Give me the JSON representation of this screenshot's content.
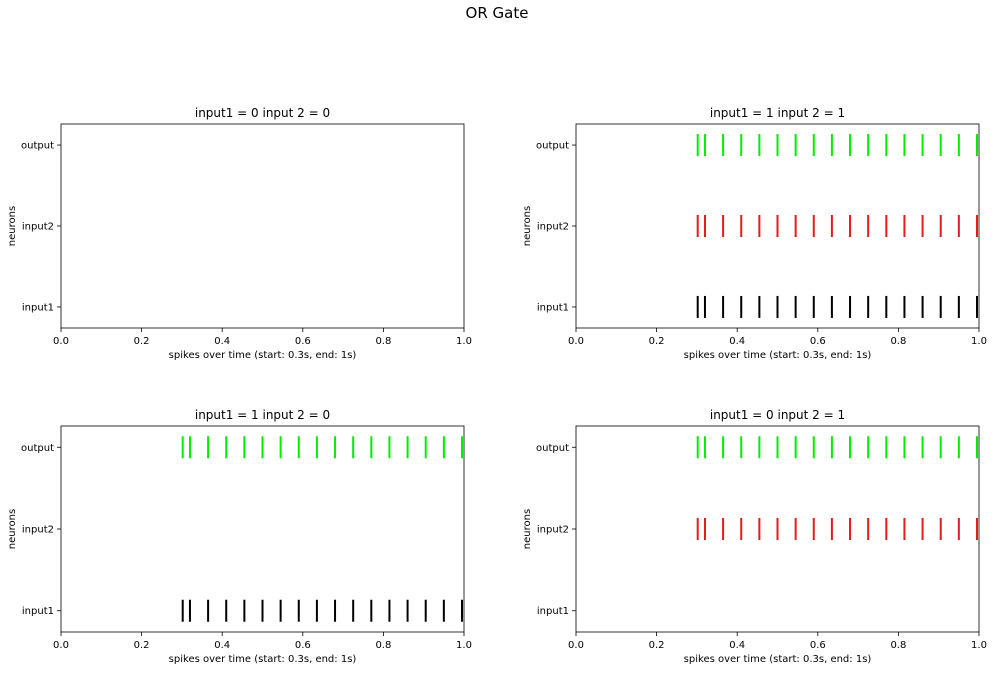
{
  "figure": {
    "title": "OR Gate"
  },
  "chart_data": [
    {
      "type": "eventplot",
      "title": "input1 = 0 input 2 = 0",
      "xlabel": "spikes over time (start: 0.3s, end: 1s)",
      "ylabel": "neurons",
      "xlim": [
        0.0,
        1.0
      ],
      "xticks": [
        "0.0",
        "0.2",
        "0.4",
        "0.6",
        "0.8",
        "1.0"
      ],
      "categories": [
        "input1",
        "input2",
        "output"
      ],
      "series": [
        {
          "name": "input1",
          "color": "#000000",
          "spikes": []
        },
        {
          "name": "input2",
          "color": "#e41a1c",
          "spikes": []
        },
        {
          "name": "output",
          "color": "#00ee00",
          "spikes": []
        }
      ]
    },
    {
      "type": "eventplot",
      "title": "input1 = 1 input 2 = 1",
      "xlabel": "spikes over time (start: 0.3s, end: 1s)",
      "ylabel": "neurons",
      "xlim": [
        0.0,
        1.0
      ],
      "xticks": [
        "0.0",
        "0.2",
        "0.4",
        "0.6",
        "0.8",
        "1.0"
      ],
      "categories": [
        "input1",
        "input2",
        "output"
      ],
      "series": [
        {
          "name": "input1",
          "color": "#000000",
          "spikes": [
            0.302,
            0.32,
            0.365,
            0.41,
            0.455,
            0.5,
            0.545,
            0.59,
            0.635,
            0.68,
            0.725,
            0.77,
            0.815,
            0.86,
            0.905,
            0.95,
            0.995
          ]
        },
        {
          "name": "input2",
          "color": "#e41a1c",
          "spikes": [
            0.302,
            0.32,
            0.365,
            0.41,
            0.455,
            0.5,
            0.545,
            0.59,
            0.635,
            0.68,
            0.725,
            0.77,
            0.815,
            0.86,
            0.905,
            0.95,
            0.995
          ]
        },
        {
          "name": "output",
          "color": "#00ee00",
          "spikes": [
            0.302,
            0.32,
            0.365,
            0.41,
            0.455,
            0.5,
            0.545,
            0.59,
            0.635,
            0.68,
            0.725,
            0.77,
            0.815,
            0.86,
            0.905,
            0.95,
            0.995
          ]
        }
      ]
    },
    {
      "type": "eventplot",
      "title": "input1 = 1 input 2 = 0",
      "xlabel": "spikes over time (start: 0.3s, end: 1s)",
      "ylabel": "neurons",
      "xlim": [
        0.0,
        1.0
      ],
      "xticks": [
        "0.0",
        "0.2",
        "0.4",
        "0.6",
        "0.8",
        "1.0"
      ],
      "categories": [
        "input1",
        "input2",
        "output"
      ],
      "series": [
        {
          "name": "input1",
          "color": "#000000",
          "spikes": [
            0.302,
            0.32,
            0.365,
            0.41,
            0.455,
            0.5,
            0.545,
            0.59,
            0.635,
            0.68,
            0.725,
            0.77,
            0.815,
            0.86,
            0.905,
            0.95,
            0.995
          ]
        },
        {
          "name": "input2",
          "color": "#e41a1c",
          "spikes": []
        },
        {
          "name": "output",
          "color": "#00ee00",
          "spikes": [
            0.302,
            0.32,
            0.365,
            0.41,
            0.455,
            0.5,
            0.545,
            0.59,
            0.635,
            0.68,
            0.725,
            0.77,
            0.815,
            0.86,
            0.905,
            0.95,
            0.995
          ]
        }
      ]
    },
    {
      "type": "eventplot",
      "title": "input1 = 0 input 2 = 1",
      "xlabel": "spikes over time (start: 0.3s, end: 1s)",
      "ylabel": "neurons",
      "xlim": [
        0.0,
        1.0
      ],
      "xticks": [
        "0.0",
        "0.2",
        "0.4",
        "0.6",
        "0.8",
        "1.0"
      ],
      "categories": [
        "input1",
        "input2",
        "output"
      ],
      "series": [
        {
          "name": "input1",
          "color": "#000000",
          "spikes": []
        },
        {
          "name": "input2",
          "color": "#e41a1c",
          "spikes": [
            0.302,
            0.32,
            0.365,
            0.41,
            0.455,
            0.5,
            0.545,
            0.59,
            0.635,
            0.68,
            0.725,
            0.77,
            0.815,
            0.86,
            0.905,
            0.95,
            0.995
          ]
        },
        {
          "name": "output",
          "color": "#00ee00",
          "spikes": [
            0.302,
            0.32,
            0.365,
            0.41,
            0.455,
            0.5,
            0.545,
            0.59,
            0.635,
            0.68,
            0.725,
            0.77,
            0.815,
            0.86,
            0.905,
            0.95,
            0.995
          ]
        }
      ]
    }
  ]
}
